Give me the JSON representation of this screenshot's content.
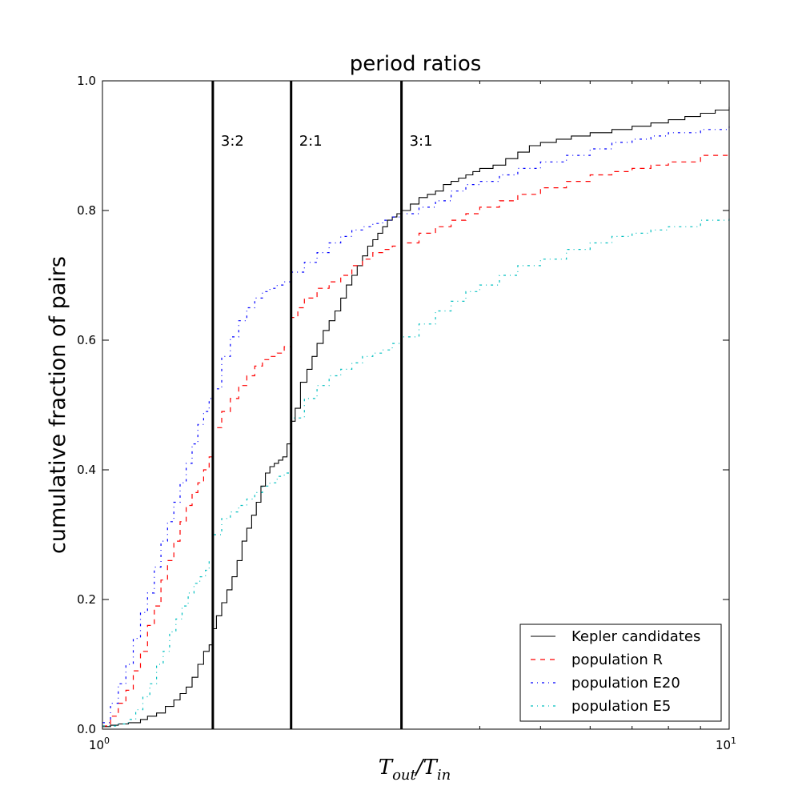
{
  "chart_data": {
    "type": "line",
    "title": "period ratios",
    "xlabel": {
      "base1": "T",
      "sub1": "out",
      "slash": "/",
      "base2": "T",
      "sub2": "in"
    },
    "ylabel": "cumulative fraction of pairs",
    "xscale": "log",
    "xlim": [
      1,
      10
    ],
    "ylim": [
      0,
      1
    ],
    "xticks": [
      {
        "value": 1,
        "base": "10",
        "exp": "0"
      },
      {
        "value": 10,
        "base": "10",
        "exp": "1"
      }
    ],
    "yticks": [
      {
        "value": 0,
        "label": "0.0"
      },
      {
        "value": 0.2,
        "label": "0.2"
      },
      {
        "value": 0.4,
        "label": "0.4"
      },
      {
        "value": 0.6,
        "label": "0.6"
      },
      {
        "value": 0.8,
        "label": "0.8"
      },
      {
        "value": 1.0,
        "label": "1.0"
      }
    ],
    "resonances": [
      {
        "label": "3:2",
        "x": 1.5
      },
      {
        "label": "2:1",
        "x": 2.0
      },
      {
        "label": "3:1",
        "x": 3.0
      }
    ],
    "legend_position": "lower right",
    "series": [
      {
        "name": "Kepler candidates",
        "color": "#000000",
        "style": "solid",
        "x": [
          1.0,
          1.03,
          1.06,
          1.1,
          1.15,
          1.18,
          1.22,
          1.26,
          1.3,
          1.33,
          1.36,
          1.39,
          1.42,
          1.45,
          1.48,
          1.5,
          1.52,
          1.55,
          1.58,
          1.61,
          1.64,
          1.67,
          1.7,
          1.73,
          1.76,
          1.79,
          1.82,
          1.85,
          1.88,
          1.91,
          1.94,
          1.97,
          2.0,
          2.03,
          2.07,
          2.12,
          2.16,
          2.2,
          2.25,
          2.3,
          2.35,
          2.4,
          2.45,
          2.5,
          2.55,
          2.6,
          2.65,
          2.7,
          2.75,
          2.8,
          2.85,
          2.9,
          2.95,
          3.0,
          3.1,
          3.2,
          3.3,
          3.4,
          3.5,
          3.6,
          3.7,
          3.8,
          3.9,
          4.0,
          4.2,
          4.4,
          4.6,
          4.8,
          5.0,
          5.3,
          5.6,
          6.0,
          6.5,
          7.0,
          7.5,
          8.0,
          8.5,
          9.0,
          9.5,
          10.0
        ],
        "y": [
          0.004,
          0.006,
          0.008,
          0.01,
          0.015,
          0.02,
          0.025,
          0.035,
          0.045,
          0.055,
          0.065,
          0.08,
          0.1,
          0.12,
          0.13,
          0.155,
          0.175,
          0.195,
          0.215,
          0.235,
          0.26,
          0.29,
          0.31,
          0.33,
          0.35,
          0.375,
          0.395,
          0.405,
          0.41,
          0.415,
          0.42,
          0.44,
          0.475,
          0.495,
          0.535,
          0.555,
          0.575,
          0.595,
          0.615,
          0.63,
          0.645,
          0.665,
          0.685,
          0.7,
          0.715,
          0.73,
          0.745,
          0.755,
          0.765,
          0.775,
          0.785,
          0.79,
          0.795,
          0.8,
          0.81,
          0.82,
          0.825,
          0.83,
          0.84,
          0.845,
          0.85,
          0.855,
          0.86,
          0.865,
          0.87,
          0.88,
          0.89,
          0.9,
          0.905,
          0.91,
          0.915,
          0.92,
          0.925,
          0.93,
          0.935,
          0.94,
          0.945,
          0.95,
          0.955,
          0.96
        ]
      },
      {
        "name": "population R",
        "color": "#ff0000",
        "style": "dashed",
        "x": [
          1.0,
          1.03,
          1.06,
          1.09,
          1.12,
          1.15,
          1.18,
          1.21,
          1.24,
          1.27,
          1.3,
          1.33,
          1.36,
          1.39,
          1.42,
          1.45,
          1.48,
          1.5,
          1.55,
          1.6,
          1.65,
          1.7,
          1.75,
          1.8,
          1.85,
          1.9,
          1.95,
          2.0,
          2.05,
          2.1,
          2.2,
          2.3,
          2.4,
          2.5,
          2.6,
          2.7,
          2.8,
          2.9,
          3.0,
          3.2,
          3.4,
          3.6,
          3.8,
          4.0,
          4.3,
          4.6,
          5.0,
          5.5,
          6.0,
          6.5,
          7.0,
          7.5,
          8.0,
          9.0,
          10.0
        ],
        "y": [
          0.005,
          0.02,
          0.04,
          0.06,
          0.09,
          0.12,
          0.16,
          0.19,
          0.23,
          0.26,
          0.29,
          0.32,
          0.345,
          0.365,
          0.38,
          0.4,
          0.42,
          0.465,
          0.49,
          0.51,
          0.53,
          0.545,
          0.56,
          0.57,
          0.575,
          0.58,
          0.59,
          0.635,
          0.65,
          0.665,
          0.68,
          0.69,
          0.7,
          0.715,
          0.725,
          0.735,
          0.74,
          0.745,
          0.75,
          0.765,
          0.775,
          0.785,
          0.795,
          0.805,
          0.815,
          0.825,
          0.835,
          0.845,
          0.855,
          0.86,
          0.865,
          0.87,
          0.875,
          0.885,
          0.89
        ]
      },
      {
        "name": "population E20",
        "color": "#0000ff",
        "style": "dashdot",
        "x": [
          1.0,
          1.03,
          1.06,
          1.09,
          1.12,
          1.15,
          1.18,
          1.21,
          1.24,
          1.27,
          1.3,
          1.33,
          1.36,
          1.39,
          1.42,
          1.45,
          1.48,
          1.5,
          1.55,
          1.6,
          1.65,
          1.7,
          1.75,
          1.8,
          1.85,
          1.9,
          1.95,
          2.0,
          2.1,
          2.2,
          2.3,
          2.4,
          2.5,
          2.6,
          2.7,
          2.8,
          2.9,
          3.0,
          3.2,
          3.4,
          3.6,
          3.8,
          4.0,
          4.3,
          4.6,
          5.0,
          5.5,
          6.0,
          6.5,
          7.0,
          7.5,
          8.0,
          9.0,
          10.0
        ],
        "y": [
          0.01,
          0.04,
          0.07,
          0.1,
          0.14,
          0.18,
          0.21,
          0.25,
          0.29,
          0.32,
          0.35,
          0.38,
          0.41,
          0.44,
          0.47,
          0.49,
          0.51,
          0.525,
          0.575,
          0.605,
          0.63,
          0.65,
          0.665,
          0.675,
          0.68,
          0.685,
          0.69,
          0.705,
          0.72,
          0.735,
          0.75,
          0.76,
          0.77,
          0.775,
          0.78,
          0.785,
          0.79,
          0.795,
          0.805,
          0.815,
          0.83,
          0.84,
          0.845,
          0.855,
          0.865,
          0.875,
          0.885,
          0.895,
          0.905,
          0.91,
          0.915,
          0.92,
          0.925,
          0.93
        ]
      },
      {
        "name": "population E5",
        "color": "#00bfbf",
        "style": "dashdot",
        "x": [
          1.0,
          1.05,
          1.1,
          1.13,
          1.16,
          1.19,
          1.22,
          1.25,
          1.28,
          1.31,
          1.34,
          1.37,
          1.4,
          1.43,
          1.46,
          1.48,
          1.5,
          1.55,
          1.6,
          1.65,
          1.7,
          1.75,
          1.8,
          1.85,
          1.9,
          1.95,
          2.0,
          2.1,
          2.2,
          2.3,
          2.4,
          2.5,
          2.6,
          2.7,
          2.8,
          2.9,
          3.0,
          3.2,
          3.4,
          3.6,
          3.8,
          4.0,
          4.3,
          4.6,
          5.0,
          5.5,
          6.0,
          6.5,
          7.0,
          7.5,
          8.0,
          9.0,
          10.0
        ],
        "y": [
          0.005,
          0.008,
          0.015,
          0.03,
          0.05,
          0.07,
          0.1,
          0.12,
          0.15,
          0.17,
          0.19,
          0.21,
          0.225,
          0.235,
          0.245,
          0.26,
          0.3,
          0.325,
          0.335,
          0.345,
          0.355,
          0.365,
          0.375,
          0.38,
          0.39,
          0.395,
          0.48,
          0.51,
          0.53,
          0.545,
          0.555,
          0.565,
          0.575,
          0.58,
          0.585,
          0.595,
          0.605,
          0.625,
          0.645,
          0.66,
          0.675,
          0.685,
          0.7,
          0.715,
          0.725,
          0.74,
          0.75,
          0.76,
          0.765,
          0.77,
          0.775,
          0.785,
          0.79
        ]
      }
    ]
  }
}
